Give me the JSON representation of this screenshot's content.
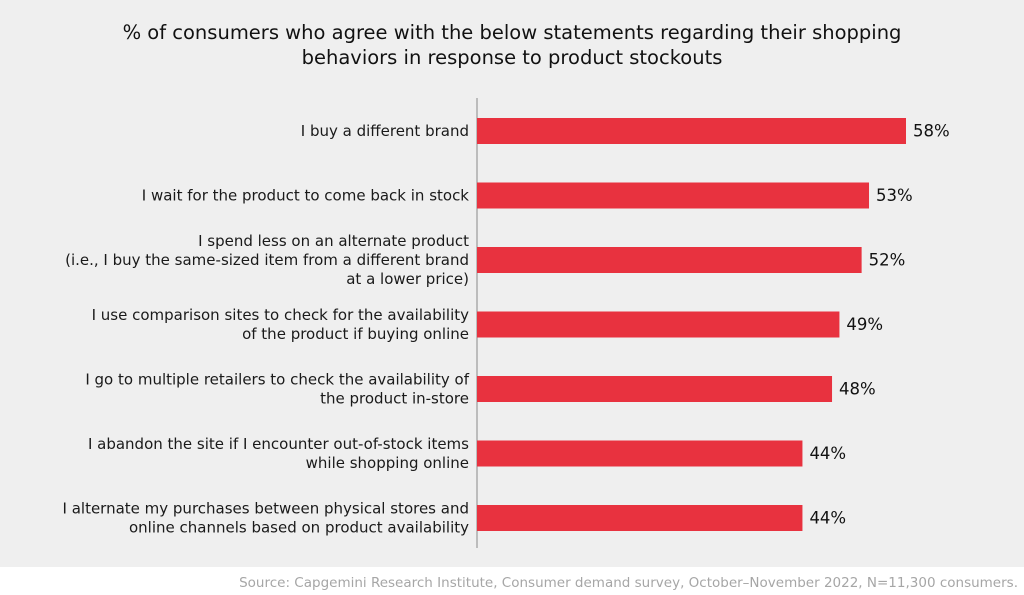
{
  "chart_data": {
    "type": "bar",
    "orientation": "horizontal",
    "title": "% of consumers who agree with the below statements regarding their shopping\nbehaviors in response to product stockouts",
    "categories": [
      "I buy a different brand",
      "I wait for the product to come back in stock",
      "I spend less on an alternate product\n(i.e., I buy the same-sized item from a different brand\nat a lower price)",
      "I use comparison sites to check for the availability\nof the product if buying online",
      "I go to multiple retailers to check the availability of\nthe product in-store",
      "I abandon the site if I encounter out-of-stock items\nwhile shopping online",
      "I alternate my purchases between physical stores and\nonline channels based on product availability"
    ],
    "values": [
      58,
      53,
      52,
      49,
      48,
      44,
      44
    ],
    "value_labels": [
      "58%",
      "53%",
      "52%",
      "49%",
      "48%",
      "44%",
      "44%"
    ],
    "xlim": [
      0,
      58
    ],
    "grid": false,
    "legend": "none",
    "bar_color": "#e8323f"
  },
  "source": "Source: Capgemini Research Institute, Consumer demand survey, October–November 2022, N=11,300 consumers."
}
